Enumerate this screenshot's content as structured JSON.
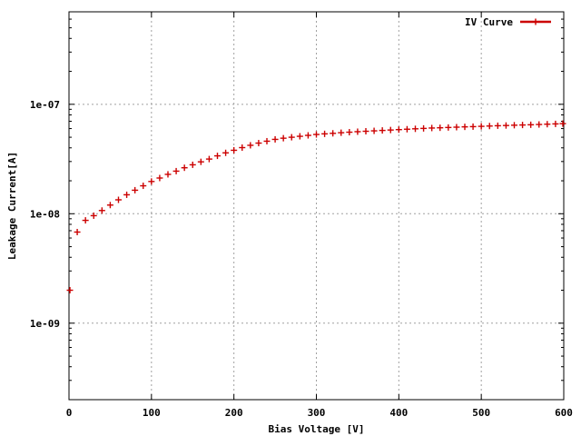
{
  "chart_data": {
    "type": "scatter",
    "xlabel": "Bias Voltage [V]",
    "ylabel": "Leakage Current[A]",
    "x_scale": "linear",
    "y_scale": "log",
    "xlim": [
      0,
      600
    ],
    "ylim": [
      2e-10,
      7e-07
    ],
    "grid": true,
    "legend_position": "top-right",
    "x_ticks": [
      0,
      100,
      200,
      300,
      400,
      500,
      600
    ],
    "x_tick_labels": [
      "0",
      "100",
      "200",
      "300",
      "400",
      "500",
      "600"
    ],
    "y_ticks": [
      1e-09,
      1e-08,
      1e-07
    ],
    "y_tick_labels": [
      "1e-09",
      "1e-08",
      "1e-07"
    ],
    "series": [
      {
        "name": "IV Curve",
        "color": "#cc0000",
        "marker": "plus",
        "x": [
          0,
          10,
          20,
          30,
          40,
          50,
          60,
          70,
          80,
          90,
          100,
          110,
          120,
          130,
          140,
          150,
          160,
          170,
          180,
          190,
          200,
          210,
          220,
          230,
          240,
          250,
          260,
          270,
          280,
          290,
          300,
          310,
          320,
          330,
          340,
          350,
          360,
          370,
          380,
          390,
          400,
          410,
          420,
          430,
          440,
          450,
          460,
          470,
          480,
          490,
          500,
          510,
          520,
          530,
          540,
          550,
          560,
          570,
          580,
          590,
          600
        ],
        "y": [
          2e-09,
          6.8e-09,
          8.7e-09,
          9.6e-09,
          1.07e-08,
          1.2e-08,
          1.34e-08,
          1.49e-08,
          1.64e-08,
          1.8e-08,
          1.97e-08,
          2.12e-08,
          2.29e-08,
          2.45e-08,
          2.63e-08,
          2.8e-08,
          2.98e-08,
          3.16e-08,
          3.38e-08,
          3.6e-08,
          3.8e-08,
          4.02e-08,
          4.22e-08,
          4.42e-08,
          4.6e-08,
          4.78e-08,
          4.9e-08,
          5e-08,
          5.1e-08,
          5.2e-08,
          5.3e-08,
          5.37e-08,
          5.43e-08,
          5.5e-08,
          5.56e-08,
          5.62e-08,
          5.67e-08,
          5.72e-08,
          5.77e-08,
          5.82e-08,
          5.87e-08,
          5.92e-08,
          5.97e-08,
          6.02e-08,
          6.07e-08,
          6.1e-08,
          6.14e-08,
          6.18e-08,
          6.22e-08,
          6.25e-08,
          6.29e-08,
          6.33e-08,
          6.37e-08,
          6.4e-08,
          6.44e-08,
          6.47e-08,
          6.5e-08,
          6.54e-08,
          6.58e-08,
          6.62e-08,
          6.66e-08
        ]
      }
    ]
  }
}
